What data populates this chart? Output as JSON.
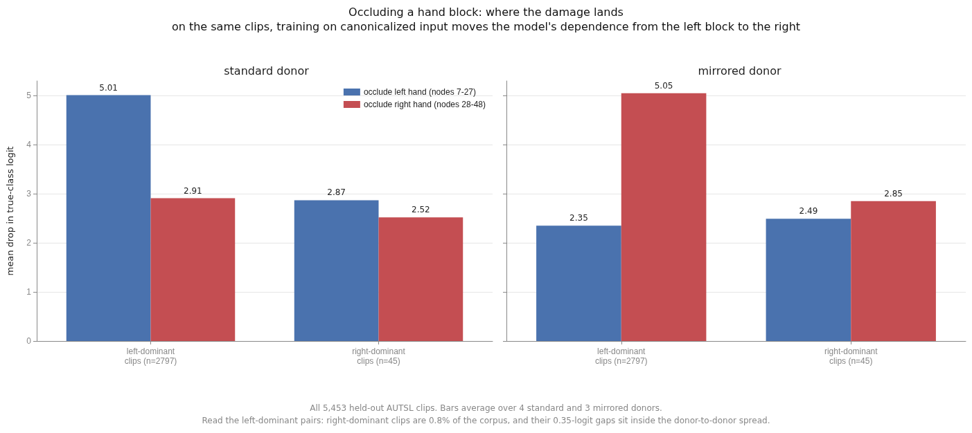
{
  "chart_data": [
    {
      "type": "bar",
      "title": "standard donor",
      "ylabel": "mean drop in true-class logit",
      "categories": [
        "left-dominant\nclips (n=2797)",
        "right-dominant\nclips (n=45)"
      ],
      "series": [
        {
          "name": "occlude left hand (nodes 7-27)",
          "color": "#4a72ae",
          "values": [
            5.01,
            2.87
          ]
        },
        {
          "name": "occlude right hand (nodes 28-48)",
          "color": "#c44e52",
          "values": [
            2.91,
            2.52
          ]
        }
      ],
      "ylim": [
        0,
        5.3
      ],
      "yticks": [
        0,
        1,
        2,
        3,
        4,
        5
      ],
      "grid": "y",
      "legend": "top right",
      "data_labels": true,
      "annotations": [
        "Occluding a hand block: where the damage lands",
        "on the same clips, training on canonicalized input moves the model's dependence from the left block to the right",
        "All 5,453 held-out AUTSL clips. Bars average over 4 standard and 3 mirrored donors.",
        "Read the left-dominant pairs: right-dominant clips are 0.8% of the corpus, and their 0.35-logit gaps sit inside the donor-to-donor spread."
      ]
    },
    {
      "type": "bar",
      "title": "mirrored donor",
      "categories": [
        "left-dominant\nclips (n=2797)",
        "right-dominant\nclips (n=45)"
      ],
      "series": [
        {
          "color": "#4a72ae",
          "values": [
            2.35,
            2.49
          ]
        },
        {
          "color": "#c44e52",
          "values": [
            5.05,
            2.85
          ]
        }
      ],
      "ylim": [
        0,
        5.3
      ],
      "yticks": [
        0,
        1,
        2,
        3,
        4,
        5
      ],
      "grid": "y",
      "legend": false,
      "data_labels": true,
      "tick_labels": "x"
    }
  ]
}
